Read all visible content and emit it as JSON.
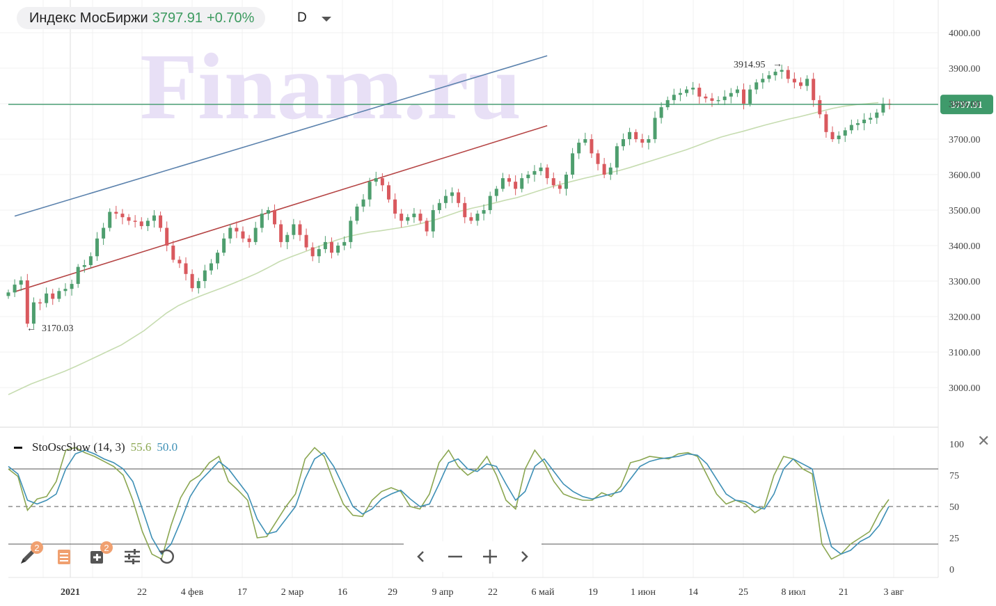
{
  "header": {
    "symbol": "Индекс МосБиржи",
    "price": "3797.91",
    "change": "+0.70%",
    "interval": "D"
  },
  "watermark": "Finam.ru",
  "colors": {
    "up": "#4e9e6e",
    "down": "#d9595e",
    "ma": "#c6dcb0",
    "upper_line": "#5b82ad",
    "lower_line": "#b54444",
    "current_price": "#3f9a6b",
    "k_line": "#8aa650",
    "d_line": "#3d8fb5"
  },
  "current_price_label": "3797.91",
  "annotations": {
    "high": "3914.95",
    "low": "3170.03"
  },
  "oscillator": {
    "name": "StoOscSlow (14, 3)",
    "k_value": "55.6",
    "d_value": "50.0",
    "levels": [
      80,
      50,
      20
    ],
    "y_ticks": [
      "100",
      "75",
      "50",
      "25",
      "0"
    ]
  },
  "chart_data": {
    "type": "candlestick",
    "price_axis": {
      "ticks": [
        "4000.00",
        "3900.00",
        "3800.00",
        "3700.00",
        "3600.00",
        "3500.00",
        "3400.00",
        "3300.00",
        "3200.00",
        "3100.00",
        "3000.00"
      ],
      "ylim": [
        2880,
        4025
      ]
    },
    "x_ticks": [
      "2021",
      "22",
      "4 фев",
      "17",
      "2 мар",
      "16",
      "29",
      "9 апр",
      "22",
      "6 май",
      "19",
      "1 июн",
      "14",
      "25",
      "8 июл",
      "21",
      "3 авг"
    ],
    "close_series": [
      3268,
      3290,
      3302,
      3180,
      3240,
      3238,
      3265,
      3250,
      3272,
      3278,
      3292,
      3340,
      3345,
      3370,
      3420,
      3450,
      3495,
      3490,
      3480,
      3470,
      3468,
      3455,
      3470,
      3485,
      3450,
      3400,
      3360,
      3350,
      3320,
      3280,
      3300,
      3330,
      3350,
      3380,
      3420,
      3450,
      3440,
      3420,
      3410,
      3450,
      3490,
      3500,
      3460,
      3410,
      3430,
      3460,
      3430,
      3395,
      3370,
      3390,
      3410,
      3380,
      3400,
      3410,
      3470,
      3510,
      3530,
      3580,
      3590,
      3570,
      3530,
      3490,
      3470,
      3480,
      3490,
      3470,
      3440,
      3500,
      3520,
      3540,
      3550,
      3520,
      3480,
      3470,
      3490,
      3500,
      3540,
      3560,
      3590,
      3580,
      3560,
      3590,
      3600,
      3610,
      3620,
      3590,
      3570,
      3560,
      3600,
      3660,
      3690,
      3700,
      3660,
      3630,
      3600,
      3620,
      3680,
      3700,
      3720,
      3700,
      3690,
      3700,
      3760,
      3790,
      3810,
      3825,
      3830,
      3840,
      3845,
      3820,
      3815,
      3808,
      3810,
      3820,
      3830,
      3840,
      3800,
      3840,
      3860,
      3870,
      3880,
      3890,
      3895,
      3870,
      3860,
      3850,
      3870,
      3810,
      3770,
      3720,
      3700,
      3710,
      3725,
      3740,
      3745,
      3755,
      3760,
      3775,
      3800,
      3797.91
    ],
    "ma_series": [
      2980,
      2995,
      3010,
      3022,
      3034,
      3046,
      3060,
      3075,
      3090,
      3105,
      3120,
      3140,
      3160,
      3185,
      3210,
      3230,
      3245,
      3258,
      3270,
      3282,
      3295,
      3308,
      3322,
      3338,
      3355,
      3368,
      3380,
      3392,
      3404,
      3415,
      3425,
      3432,
      3438,
      3442,
      3447,
      3452,
      3458,
      3466,
      3475,
      3486,
      3497,
      3505,
      3512,
      3520,
      3528,
      3535,
      3545,
      3555,
      3565,
      3574,
      3582,
      3590,
      3597,
      3604,
      3611,
      3620,
      3630,
      3640,
      3650,
      3660,
      3670,
      3682,
      3694,
      3705,
      3714,
      3722,
      3731,
      3740,
      3748,
      3756,
      3763,
      3771,
      3779,
      3787,
      3793,
      3797,
      3800,
      3803
    ],
    "upper_trend": [
      [
        3483,
        1
      ],
      [
        3935,
        85
      ]
    ],
    "lower_trend": [
      [
        3270,
        1
      ],
      [
        3738,
        85
      ]
    ],
    "current_price": 3797.91,
    "stochastic": {
      "k": [
        80,
        74,
        47,
        56,
        58,
        70,
        95,
        97,
        93,
        90,
        86,
        82,
        75,
        55,
        30,
        12,
        8,
        35,
        57,
        70,
        75,
        85,
        90,
        70,
        63,
        55,
        25,
        26,
        38,
        50,
        60,
        88,
        97,
        90,
        70,
        52,
        43,
        42,
        55,
        62,
        65,
        62,
        50,
        48,
        60,
        85,
        95,
        82,
        75,
        80,
        90,
        75,
        55,
        48,
        80,
        95,
        85,
        70,
        60,
        57,
        55,
        55,
        61,
        58,
        66,
        85,
        87,
        90,
        89,
        88,
        92,
        93,
        90,
        75,
        60,
        52,
        55,
        52,
        45,
        50,
        75,
        90,
        88,
        80,
        76,
        20,
        8,
        12,
        20,
        25,
        30,
        45,
        55.6
      ],
      "d": [
        82,
        76,
        55,
        52,
        55,
        60,
        80,
        92,
        95,
        92,
        88,
        85,
        80,
        70,
        48,
        25,
        12,
        20,
        38,
        58,
        70,
        78,
        86,
        80,
        70,
        60,
        40,
        28,
        30,
        40,
        50,
        72,
        88,
        93,
        82,
        66,
        50,
        44,
        48,
        56,
        60,
        63,
        56,
        50,
        52,
        68,
        85,
        88,
        80,
        78,
        84,
        82,
        68,
        55,
        62,
        82,
        88,
        78,
        68,
        62,
        58,
        56,
        58,
        60,
        62,
        72,
        82,
        86,
        88,
        89,
        90,
        92,
        91,
        84,
        72,
        60,
        55,
        54,
        50,
        48,
        60,
        80,
        88,
        84,
        80,
        45,
        18,
        12,
        15,
        22,
        26,
        35,
        50.0
      ]
    }
  }
}
